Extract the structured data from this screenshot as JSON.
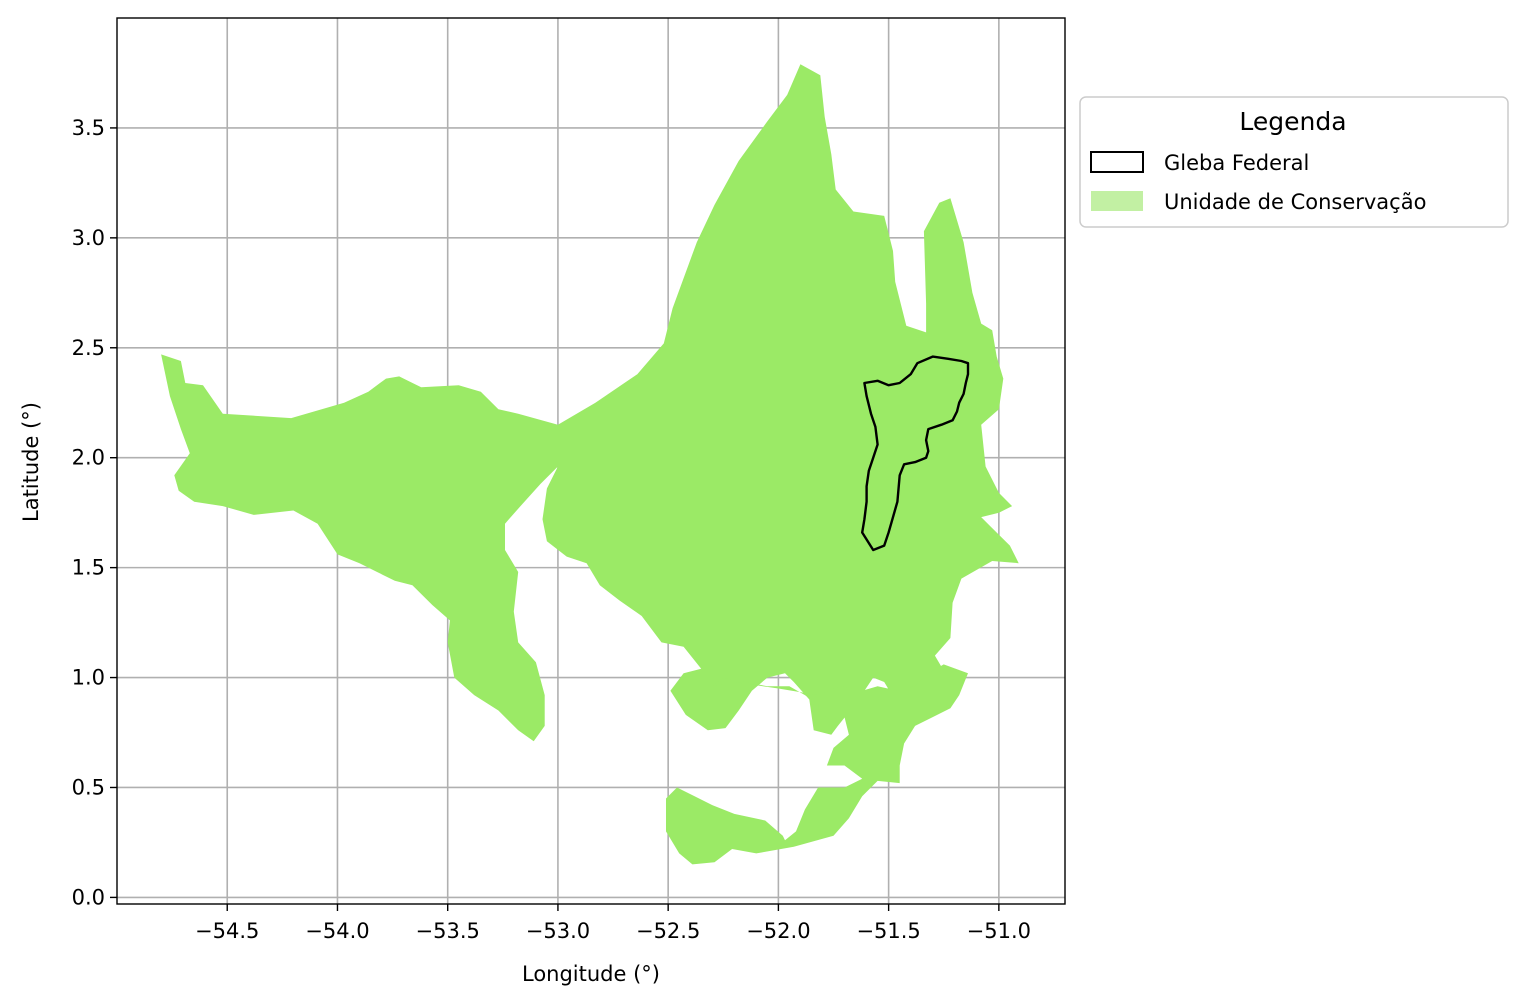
{
  "chart_data": {
    "type": "map",
    "xlabel": "Longitude (°)",
    "ylabel": "Latitude (°)",
    "xlim": [
      -55.0,
      -50.7
    ],
    "ylim": [
      -0.03,
      4.0
    ],
    "grid": true,
    "x_ticks": [
      {
        "value": -54.5,
        "label": "−54.5"
      },
      {
        "value": -54.0,
        "label": "−54.0"
      },
      {
        "value": -53.5,
        "label": "−53.5"
      },
      {
        "value": -53.0,
        "label": "−53.0"
      },
      {
        "value": -52.5,
        "label": "−52.5"
      },
      {
        "value": -52.0,
        "label": "−52.0"
      },
      {
        "value": -51.5,
        "label": "−51.5"
      },
      {
        "value": -51.0,
        "label": "−51.0"
      }
    ],
    "y_ticks": [
      {
        "value": 0.0,
        "label": "0.0"
      },
      {
        "value": 0.5,
        "label": "0.5"
      },
      {
        "value": 1.0,
        "label": "1.0"
      },
      {
        "value": 1.5,
        "label": "1.5"
      },
      {
        "value": 2.0,
        "label": "2.0"
      },
      {
        "value": 2.5,
        "label": "2.5"
      },
      {
        "value": 3.0,
        "label": "3.0"
      },
      {
        "value": 3.5,
        "label": "3.5"
      }
    ],
    "legend": {
      "title": "Legenda",
      "placement": "outside-upper-right",
      "entries": [
        {
          "label": "Gleba Federal",
          "style": "outline",
          "color": "#000000"
        },
        {
          "label": "Unidade de Conservação",
          "style": "fill",
          "color": "#9bea66"
        }
      ]
    },
    "layers": [
      {
        "name": "Unidade de Conservação",
        "color": "#9bea66",
        "polygons": [
          {
            "coords": [
              [
                -54.8,
                2.47
              ],
              [
                -54.71,
                2.44
              ],
              [
                -54.69,
                2.34
              ],
              [
                -54.61,
                2.33
              ],
              [
                -54.52,
                2.2
              ],
              [
                -54.21,
                2.18
              ],
              [
                -53.97,
                2.25
              ],
              [
                -53.86,
                2.3
              ],
              [
                -53.78,
                2.36
              ],
              [
                -53.72,
                2.37
              ],
              [
                -53.62,
                2.32
              ],
              [
                -53.45,
                2.33
              ],
              [
                -53.35,
                2.3
              ],
              [
                -53.27,
                2.22
              ],
              [
                -53.18,
                2.2
              ],
              [
                -53.0,
                2.15
              ],
              [
                -52.83,
                2.25
              ],
              [
                -52.64,
                2.38
              ],
              [
                -52.52,
                2.52
              ],
              [
                -52.48,
                2.68
              ],
              [
                -52.37,
                2.98
              ],
              [
                -52.29,
                3.15
              ],
              [
                -52.18,
                3.35
              ],
              [
                -52.05,
                3.53
              ],
              [
                -51.96,
                3.65
              ],
              [
                -51.9,
                3.79
              ],
              [
                -51.81,
                3.74
              ],
              [
                -51.79,
                3.55
              ],
              [
                -51.76,
                3.38
              ],
              [
                -51.74,
                3.22
              ],
              [
                -51.66,
                3.12
              ],
              [
                -51.52,
                3.1
              ],
              [
                -51.48,
                2.94
              ],
              [
                -51.47,
                2.8
              ],
              [
                -51.42,
                2.6
              ],
              [
                -51.33,
                2.57
              ],
              [
                -51.33,
                2.7
              ],
              [
                -51.34,
                3.03
              ],
              [
                -51.27,
                3.16
              ],
              [
                -51.22,
                3.18
              ],
              [
                -51.16,
                2.98
              ],
              [
                -51.12,
                2.75
              ],
              [
                -51.08,
                2.61
              ],
              [
                -51.03,
                2.58
              ],
              [
                -51.01,
                2.46
              ],
              [
                -50.98,
                2.36
              ],
              [
                -51.0,
                2.22
              ],
              [
                -51.08,
                2.15
              ],
              [
                -51.06,
                1.96
              ],
              [
                -51.0,
                1.84
              ],
              [
                -50.94,
                1.78
              ],
              [
                -51.0,
                1.75
              ],
              [
                -51.08,
                1.73
              ],
              [
                -51.03,
                1.68
              ],
              [
                -50.95,
                1.6
              ],
              [
                -50.91,
                1.52
              ],
              [
                -51.03,
                1.53
              ],
              [
                -51.17,
                1.45
              ],
              [
                -51.21,
                1.34
              ],
              [
                -51.22,
                1.18
              ],
              [
                -51.29,
                1.1
              ],
              [
                -51.22,
                0.98
              ],
              [
                -51.25,
                0.86
              ],
              [
                -51.33,
                0.82
              ],
              [
                -51.42,
                0.86
              ],
              [
                -51.49,
                0.93
              ],
              [
                -51.52,
                0.98
              ],
              [
                -51.57,
                1.0
              ],
              [
                -51.65,
                0.88
              ],
              [
                -51.73,
                0.78
              ],
              [
                -51.76,
                0.74
              ],
              [
                -51.84,
                0.76
              ],
              [
                -51.86,
                0.9
              ],
              [
                -51.93,
                0.98
              ],
              [
                -51.97,
                1.02
              ],
              [
                -52.05,
                1.0
              ],
              [
                -52.12,
                0.94
              ],
              [
                -52.18,
                0.85
              ],
              [
                -52.24,
                0.77
              ],
              [
                -52.32,
                0.76
              ],
              [
                -52.42,
                0.83
              ],
              [
                -52.49,
                0.94
              ],
              [
                -52.43,
                1.02
              ],
              [
                -52.35,
                1.04
              ],
              [
                -52.43,
                1.14
              ],
              [
                -52.53,
                1.16
              ],
              [
                -52.62,
                1.28
              ],
              [
                -52.72,
                1.35
              ],
              [
                -52.81,
                1.42
              ],
              [
                -52.87,
                1.52
              ],
              [
                -52.96,
                1.55
              ],
              [
                -53.05,
                1.62
              ],
              [
                -53.07,
                1.72
              ],
              [
                -53.05,
                1.86
              ],
              [
                -53.0,
                1.96
              ],
              [
                -53.08,
                1.88
              ],
              [
                -53.17,
                1.78
              ],
              [
                -53.24,
                1.7
              ],
              [
                -53.24,
                1.58
              ],
              [
                -53.18,
                1.48
              ],
              [
                -53.2,
                1.3
              ],
              [
                -53.18,
                1.16
              ],
              [
                -53.1,
                1.07
              ],
              [
                -53.06,
                0.92
              ],
              [
                -53.06,
                0.78
              ],
              [
                -53.11,
                0.71
              ],
              [
                -53.18,
                0.76
              ],
              [
                -53.27,
                0.85
              ],
              [
                -53.38,
                0.92
              ],
              [
                -53.47,
                1.0
              ],
              [
                -53.5,
                1.16
              ],
              [
                -53.49,
                1.26
              ],
              [
                -53.57,
                1.33
              ],
              [
                -53.66,
                1.42
              ],
              [
                -53.74,
                1.44
              ],
              [
                -53.82,
                1.48
              ],
              [
                -53.9,
                1.52
              ],
              [
                -54.0,
                1.56
              ],
              [
                -54.09,
                1.7
              ],
              [
                -54.2,
                1.76
              ],
              [
                -54.38,
                1.74
              ],
              [
                -54.52,
                1.78
              ],
              [
                -54.65,
                1.8
              ],
              [
                -54.72,
                1.85
              ],
              [
                -54.74,
                1.92
              ],
              [
                -54.67,
                2.02
              ],
              [
                -54.71,
                2.13
              ],
              [
                -54.76,
                2.28
              ],
              [
                -54.8,
                2.47
              ]
            ]
          },
          {
            "coords": [
              [
                -52.3,
                0.96
              ],
              [
                -52.25,
                1.0
              ],
              [
                -52.05,
                0.96
              ],
              [
                -51.95,
                0.96
              ],
              [
                -51.88,
                0.92
              ],
              [
                -51.82,
                0.88
              ],
              [
                -51.82,
                0.85
              ],
              [
                -51.77,
                0.81
              ],
              [
                -51.7,
                0.82
              ],
              [
                -51.68,
                0.74
              ],
              [
                -51.75,
                0.68
              ],
              [
                -51.78,
                0.6
              ],
              [
                -51.7,
                0.6
              ],
              [
                -51.62,
                0.54
              ],
              [
                -51.7,
                0.5
              ],
              [
                -51.82,
                0.5
              ],
              [
                -51.88,
                0.4
              ],
              [
                -51.92,
                0.3
              ],
              [
                -51.97,
                0.26
              ],
              [
                -51.98,
                0.28
              ],
              [
                -52.06,
                0.35
              ],
              [
                -52.2,
                0.38
              ],
              [
                -52.3,
                0.42
              ],
              [
                -52.38,
                0.46
              ],
              [
                -52.46,
                0.5
              ],
              [
                -52.51,
                0.45
              ],
              [
                -52.51,
                0.3
              ],
              [
                -52.45,
                0.2
              ],
              [
                -52.39,
                0.15
              ],
              [
                -52.29,
                0.16
              ],
              [
                -52.21,
                0.22
              ],
              [
                -52.1,
                0.2
              ],
              [
                -51.93,
                0.23
              ],
              [
                -51.75,
                0.28
              ],
              [
                -51.68,
                0.36
              ],
              [
                -51.62,
                0.46
              ],
              [
                -51.55,
                0.53
              ],
              [
                -51.45,
                0.52
              ],
              [
                -51.45,
                0.6
              ],
              [
                -51.43,
                0.7
              ],
              [
                -51.38,
                0.78
              ],
              [
                -51.3,
                0.82
              ],
              [
                -51.22,
                0.86
              ],
              [
                -51.18,
                0.92
              ],
              [
                -51.14,
                1.02
              ],
              [
                -51.25,
                1.06
              ],
              [
                -51.32,
                1.02
              ],
              [
                -51.38,
                0.96
              ],
              [
                -51.46,
                0.94
              ],
              [
                -51.55,
                0.96
              ],
              [
                -51.62,
                0.94
              ],
              [
                -51.72,
                0.96
              ],
              [
                -51.82,
                0.92
              ],
              [
                -52.0,
                0.95
              ],
              [
                -52.2,
                0.98
              ],
              [
                -52.3,
                0.96
              ]
            ]
          }
        ]
      },
      {
        "name": "Gleba Federal",
        "color": "#000000",
        "polygons": [
          {
            "coords": [
              [
                -51.57,
                1.58
              ],
              [
                -51.52,
                1.6
              ],
              [
                -51.5,
                1.66
              ],
              [
                -51.46,
                1.8
              ],
              [
                -51.45,
                1.92
              ],
              [
                -51.43,
                1.97
              ],
              [
                -51.38,
                1.98
              ],
              [
                -51.33,
                2.0
              ],
              [
                -51.32,
                2.03
              ],
              [
                -51.33,
                2.08
              ],
              [
                -51.32,
                2.13
              ],
              [
                -51.26,
                2.15
              ],
              [
                -51.21,
                2.17
              ],
              [
                -51.19,
                2.21
              ],
              [
                -51.18,
                2.25
              ],
              [
                -51.16,
                2.29
              ],
              [
                -51.15,
                2.34
              ],
              [
                -51.14,
                2.38
              ],
              [
                -51.14,
                2.43
              ],
              [
                -51.17,
                2.44
              ],
              [
                -51.23,
                2.45
              ],
              [
                -51.3,
                2.46
              ],
              [
                -51.37,
                2.43
              ],
              [
                -51.4,
                2.38
              ],
              [
                -51.45,
                2.34
              ],
              [
                -51.5,
                2.33
              ],
              [
                -51.55,
                2.35
              ],
              [
                -51.61,
                2.34
              ],
              [
                -51.6,
                2.28
              ],
              [
                -51.58,
                2.2
              ],
              [
                -51.56,
                2.14
              ],
              [
                -51.55,
                2.06
              ],
              [
                -51.57,
                2.0
              ],
              [
                -51.59,
                1.94
              ],
              [
                -51.6,
                1.87
              ],
              [
                -51.6,
                1.8
              ],
              [
                -51.61,
                1.72
              ],
              [
                -51.62,
                1.66
              ],
              [
                -51.57,
                1.58
              ]
            ]
          }
        ]
      }
    ]
  }
}
